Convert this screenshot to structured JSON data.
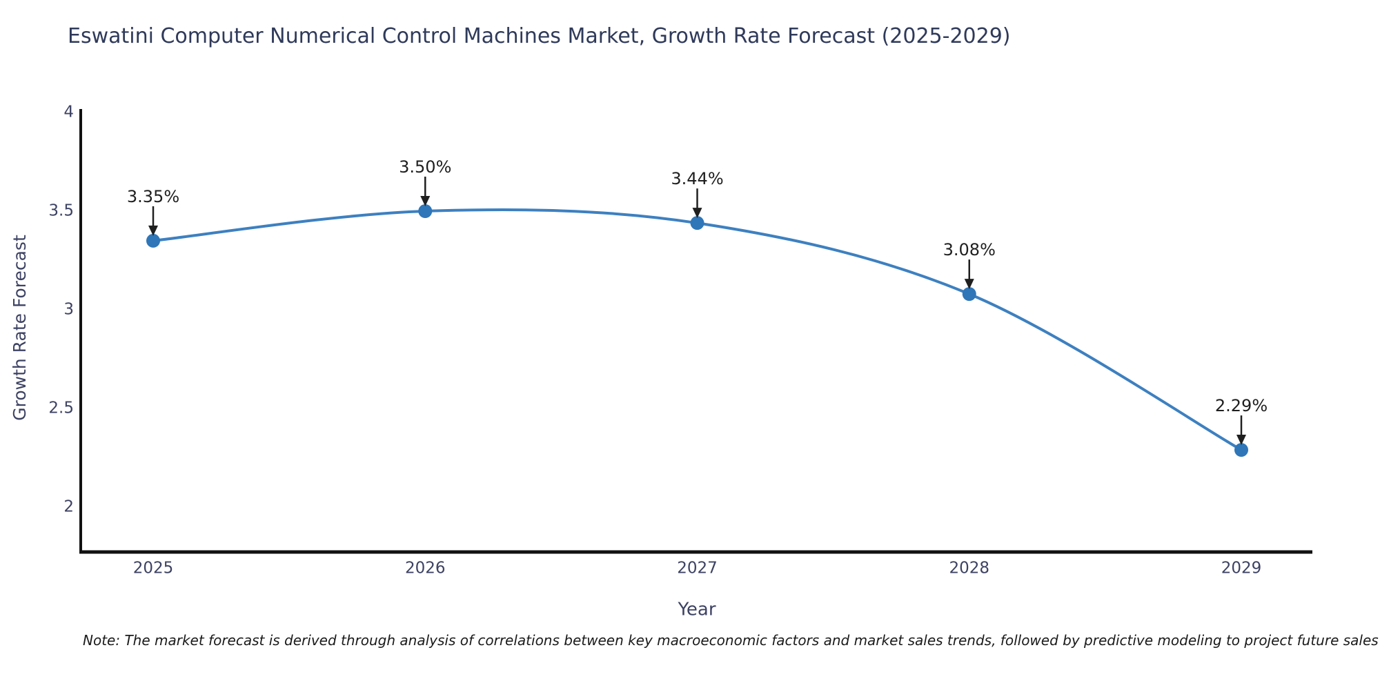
{
  "page": {
    "background": "#ffffff"
  },
  "chart_data": {
    "type": "line",
    "title": "Eswatini Computer Numerical Control Machines Market, Growth Rate Forecast (2025-2029)",
    "xlabel": "Year",
    "ylabel": "Growth Rate Forecast",
    "x": [
      2025,
      2026,
      2027,
      2028,
      2029
    ],
    "series": [
      {
        "name": "Growth Rate Forecast",
        "values": [
          3.35,
          3.5,
          3.44,
          3.08,
          2.29
        ]
      }
    ],
    "point_labels": [
      "3.35%",
      "3.50%",
      "3.44%",
      "3.08%",
      "2.29%"
    ],
    "x_tick_labels": [
      "2025",
      "2026",
      "2027",
      "2028",
      "2029"
    ],
    "y_ticks": [
      4,
      3.5,
      3,
      2.5,
      2
    ],
    "y_tick_labels": [
      "4",
      "3.5",
      "3",
      "2.5",
      "2"
    ],
    "ylim": [
      1.77,
      4.01
    ],
    "grid": false,
    "legend_position": "none",
    "smooth": true,
    "colors": {
      "line": "#3d80c0",
      "marker": "#2e76b8",
      "axis": "#111111",
      "annotation": "#1f1f1f",
      "tick_label": "#3d4263",
      "axis_label": "#3d4263",
      "title": "#2f3a5a"
    }
  },
  "note": {
    "text": "Note: The market forecast is derived through analysis of correlations between key macroeconomic factors and market sales trends, followed by predictive modeling to project future sales"
  }
}
